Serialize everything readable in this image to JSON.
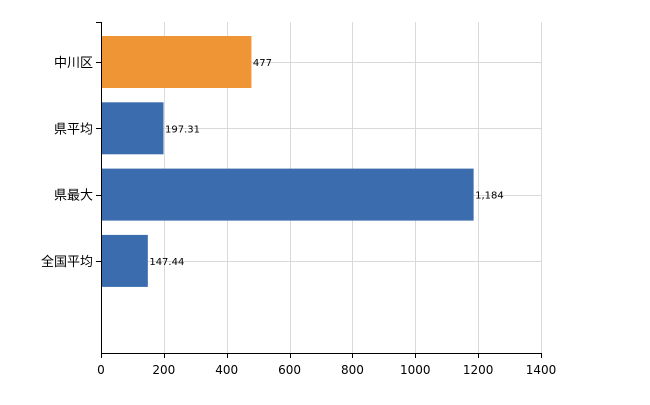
{
  "chart_data": {
    "type": "bar",
    "orientation": "horizontal",
    "categories": [
      "中川区",
      "県平均",
      "県最大",
      "全国平均"
    ],
    "values": [
      477,
      197.31,
      1184,
      147.44
    ],
    "value_labels": [
      "477",
      "197.31",
      "1,184",
      "147.44"
    ],
    "colors": [
      "#ef9535",
      "#3b6cad",
      "#3b6cad",
      "#3b6cad"
    ],
    "xlim": [
      0,
      1400
    ],
    "xticks": [
      0,
      200,
      400,
      600,
      800,
      1000,
      1200,
      1400
    ],
    "xtick_labels": [
      "0",
      "200",
      "400",
      "600",
      "800",
      "1000",
      "1200",
      "1400"
    ],
    "grid": true,
    "legend": "none"
  }
}
